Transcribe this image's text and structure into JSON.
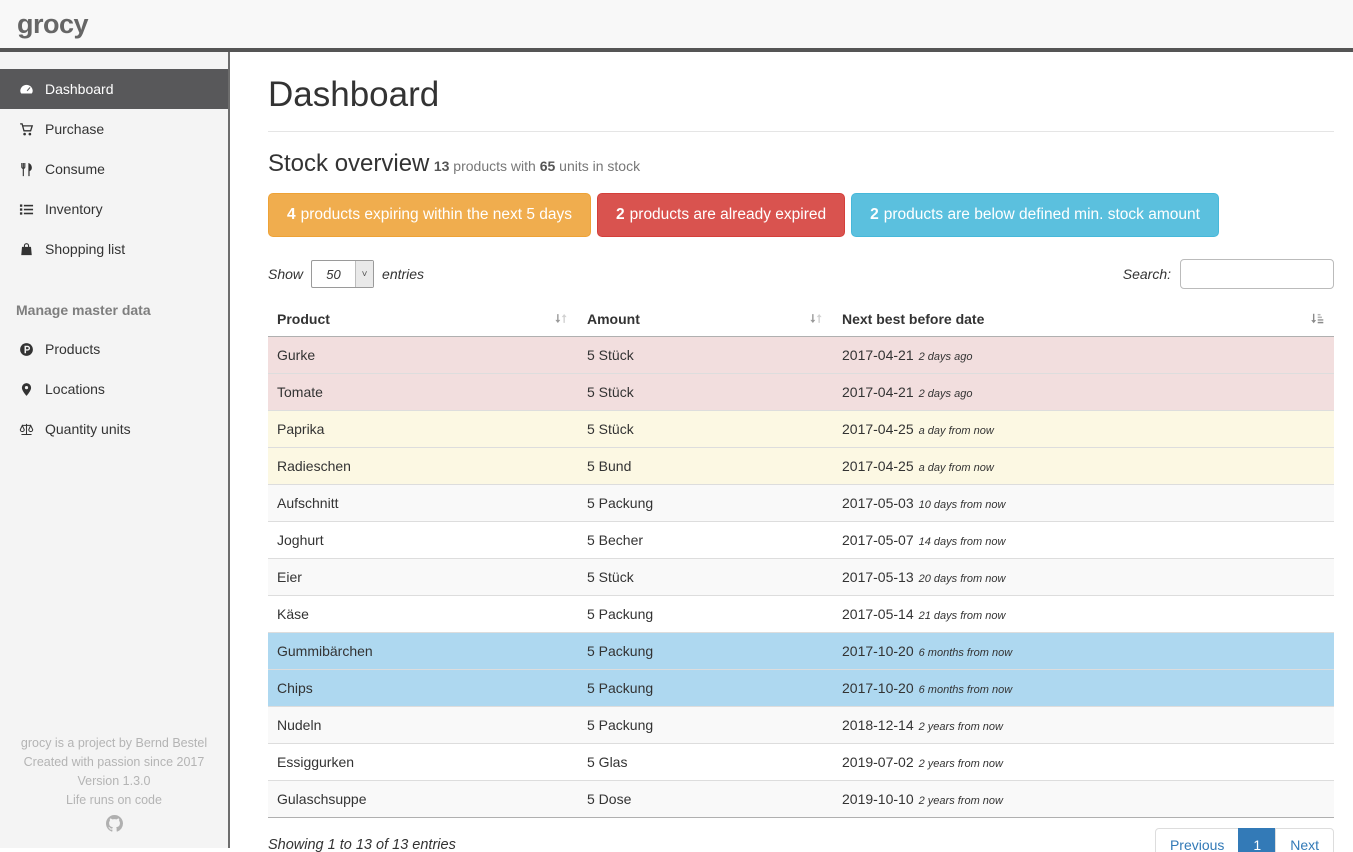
{
  "navbar": {
    "logo": "grocy"
  },
  "sidebar": {
    "items": [
      {
        "label": "Dashboard",
        "icon": "tachometer",
        "active": true
      },
      {
        "label": "Purchase",
        "icon": "shopping-cart",
        "active": false
      },
      {
        "label": "Consume",
        "icon": "cutlery",
        "active": false
      },
      {
        "label": "Inventory",
        "icon": "list",
        "active": false
      },
      {
        "label": "Shopping list",
        "icon": "shopping-bag",
        "active": false
      }
    ],
    "section_header": "Manage master data",
    "master_items": [
      {
        "label": "Products",
        "icon": "product-hunt",
        "active": false
      },
      {
        "label": "Locations",
        "icon": "map-marker",
        "active": false
      },
      {
        "label": "Quantity units",
        "icon": "balance-scale",
        "active": false
      }
    ],
    "footer_lines": [
      "grocy is a project by Bernd Bestel",
      "Created with passion since 2017",
      "Version 1.3.0",
      "Life runs on code"
    ],
    "footer_icon": "github"
  },
  "main": {
    "page_title": "Dashboard",
    "stock": {
      "heading": "Stock overview",
      "products_count": "13",
      "mid_text": " products with ",
      "units_count": "65",
      "end_text": " units in stock"
    },
    "alerts": [
      {
        "count": "4",
        "text": "products expiring within the next 5 days",
        "color": "#f0ad4e",
        "border": "#eea236"
      },
      {
        "count": "2",
        "text": "products are already expired",
        "color": "#d9534f",
        "border": "#d43f3a"
      },
      {
        "count": "2",
        "text": "products are below defined min. stock amount",
        "color": "#5bc0de",
        "border": "#46b8da"
      }
    ],
    "controls": {
      "show_label": "Show",
      "page_length": "50",
      "entries_label": "entries",
      "search_label": "Search:",
      "search_value": ""
    },
    "table": {
      "headers": [
        {
          "label": "Product",
          "sort_icon": "sort-unsorted"
        },
        {
          "label": "Amount",
          "sort_icon": "sort-unsorted"
        },
        {
          "label": "Next best before date",
          "sort_icon": "sort-amount-asc"
        }
      ],
      "rows": [
        {
          "product": "Gurke",
          "amount": "5 Stück",
          "date": "2017-04-21",
          "relative": "2 days ago",
          "status": "expired"
        },
        {
          "product": "Tomate",
          "amount": "5 Stück",
          "date": "2017-04-21",
          "relative": "2 days ago",
          "status": "expired"
        },
        {
          "product": "Paprika",
          "amount": "5 Stück",
          "date": "2017-04-25",
          "relative": "a day from now",
          "status": "expiring"
        },
        {
          "product": "Radieschen",
          "amount": "5 Bund",
          "date": "2017-04-25",
          "relative": "a day from now",
          "status": "expiring"
        },
        {
          "product": "Aufschnitt",
          "amount": "5 Packung",
          "date": "2017-05-03",
          "relative": "10 days from now",
          "status": "stripe"
        },
        {
          "product": "Joghurt",
          "amount": "5 Becher",
          "date": "2017-05-07",
          "relative": "14 days from now",
          "status": "none"
        },
        {
          "product": "Eier",
          "amount": "5 Stück",
          "date": "2017-05-13",
          "relative": "20 days from now",
          "status": "stripe"
        },
        {
          "product": "Käse",
          "amount": "5 Packung",
          "date": "2017-05-14",
          "relative": "21 days from now",
          "status": "none"
        },
        {
          "product": "Gummibärchen",
          "amount": "5 Packung",
          "date": "2017-10-20",
          "relative": "6 months from now",
          "status": "belowmin"
        },
        {
          "product": "Chips",
          "amount": "5 Packung",
          "date": "2017-10-20",
          "relative": "6 months from now",
          "status": "belowmin"
        },
        {
          "product": "Nudeln",
          "amount": "5 Packung",
          "date": "2018-12-14",
          "relative": "2 years from now",
          "status": "stripe"
        },
        {
          "product": "Essiggurken",
          "amount": "5 Glas",
          "date": "2019-07-02",
          "relative": "2 years from now",
          "status": "none"
        },
        {
          "product": "Gulaschsuppe",
          "amount": "5 Dose",
          "date": "2019-10-10",
          "relative": "2 years from now",
          "status": "stripe"
        }
      ]
    },
    "info": "Showing 1 to 13 of 13 entries",
    "pagination": [
      {
        "label": "Previous",
        "active": false
      },
      {
        "label": "1",
        "active": true
      },
      {
        "label": "Next",
        "active": false
      }
    ]
  },
  "colors": {
    "expired_row": "#f2dede",
    "expiring_row": "#fcf8e3",
    "below_min_row": "#aed8f0",
    "active_page": "#337ab7",
    "sidebar_active": "#58585a"
  }
}
